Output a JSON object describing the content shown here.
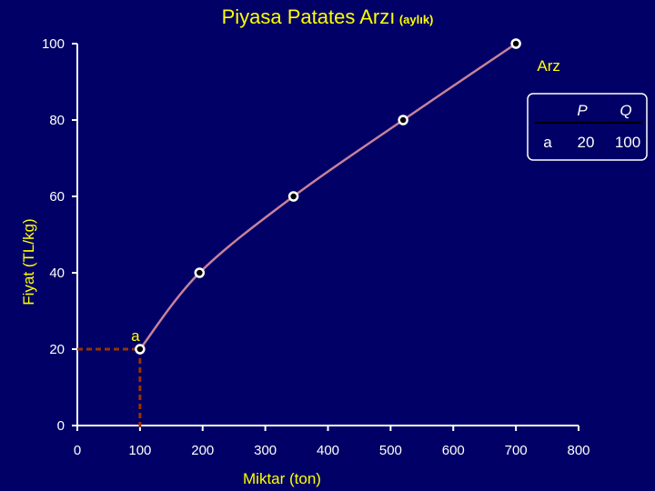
{
  "chart_data": {
    "type": "line",
    "title": "Piyasa Patates Arzı",
    "subtitle": "(aylık)",
    "xlabel": "Miktar (ton)",
    "ylabel": "Fiyat (TL/kg)",
    "xlim": [
      0,
      800
    ],
    "ylim": [
      0,
      100
    ],
    "x_ticks": [
      "0",
      "100",
      "200",
      "300",
      "400",
      "500",
      "600",
      "700",
      "800"
    ],
    "y_ticks": [
      "0",
      "20",
      "40",
      "60",
      "80",
      "100"
    ],
    "series": [
      {
        "name": "Arz",
        "x": [
          100,
          195,
          345,
          520,
          700
        ],
        "y": [
          20,
          40,
          60,
          80,
          100
        ]
      }
    ],
    "highlight_point": {
      "label": "a",
      "x": 100,
      "y": 20
    },
    "table": {
      "headers": [
        "P",
        "Q"
      ],
      "rows": [
        {
          "label": "a",
          "values": [
            "20",
            "100"
          ]
        }
      ]
    },
    "grid": false
  },
  "colors": {
    "background": "#000066",
    "title": "#ffff00",
    "line": "#c8829a",
    "marker_face": "#000000",
    "marker_edge": "#ffffff",
    "axis": "#ffffff",
    "guide": "#993300"
  }
}
